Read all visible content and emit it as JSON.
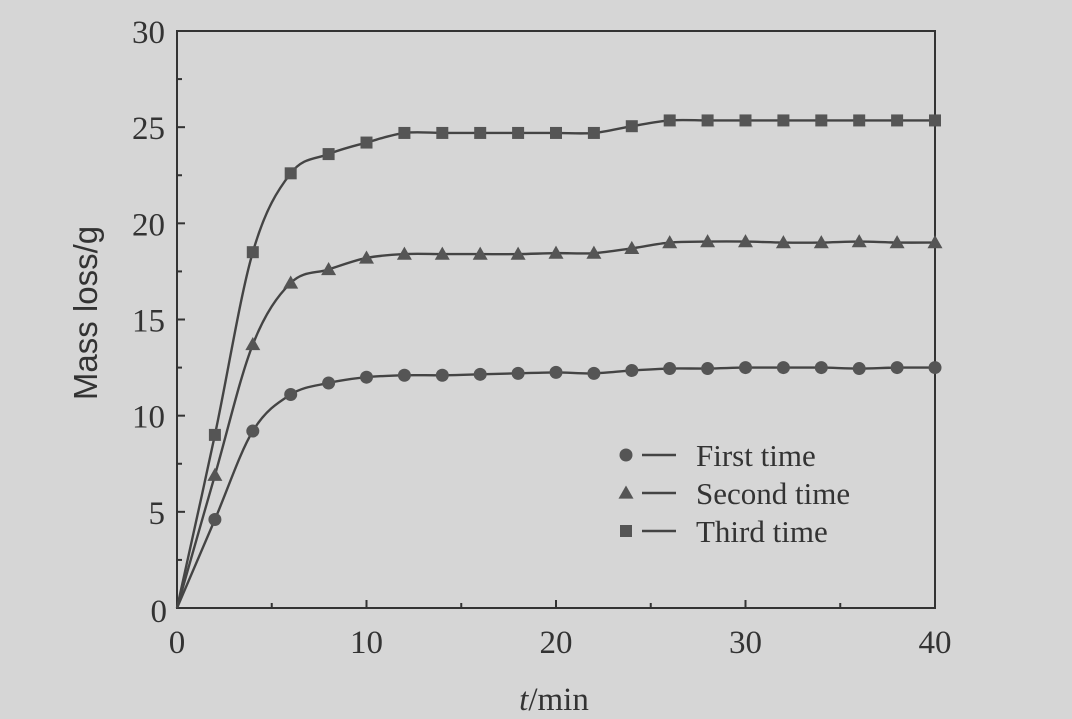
{
  "chart_data": {
    "type": "line",
    "title": "",
    "xlabel_italic": "t",
    "xlabel_rest": "/min",
    "ylabel": "Mass loss/g",
    "xlim": [
      0,
      40
    ],
    "ylim": [
      0,
      30
    ],
    "xticks": [
      0,
      10,
      20,
      30,
      40
    ],
    "yticks": [
      5,
      10,
      15,
      20,
      25,
      30
    ],
    "xtick_labels": [
      "0",
      "10",
      "20",
      "30",
      "40"
    ],
    "ytick_labels": [
      "5",
      "10",
      "15",
      "20",
      "25",
      "30"
    ],
    "grid": false,
    "legend_position": "lower-right",
    "x": [
      0,
      2,
      4,
      6,
      8,
      10,
      12,
      14,
      16,
      18,
      20,
      22,
      24,
      26,
      28,
      30,
      32,
      34,
      36,
      38,
      40
    ],
    "series": [
      {
        "name": "First time",
        "marker": "circle",
        "values": [
          0,
          4.6,
          9.2,
          11.1,
          11.7,
          12.0,
          12.1,
          12.1,
          12.15,
          12.2,
          12.25,
          12.2,
          12.35,
          12.45,
          12.45,
          12.5,
          12.5,
          12.5,
          12.45,
          12.5,
          12.5
        ]
      },
      {
        "name": "Second time",
        "marker": "triangle",
        "values": [
          0,
          6.9,
          13.7,
          16.9,
          17.6,
          18.2,
          18.4,
          18.4,
          18.4,
          18.4,
          18.45,
          18.45,
          18.7,
          19.0,
          19.05,
          19.05,
          19.0,
          19.0,
          19.05,
          19.0,
          19.0
        ]
      },
      {
        "name": "Third time",
        "marker": "square",
        "values": [
          0,
          9.0,
          18.5,
          22.6,
          23.6,
          24.2,
          24.7,
          24.7,
          24.7,
          24.7,
          24.7,
          24.7,
          25.05,
          25.35,
          25.35,
          25.35,
          25.35,
          25.35,
          25.35,
          25.35,
          25.35
        ]
      }
    ]
  }
}
